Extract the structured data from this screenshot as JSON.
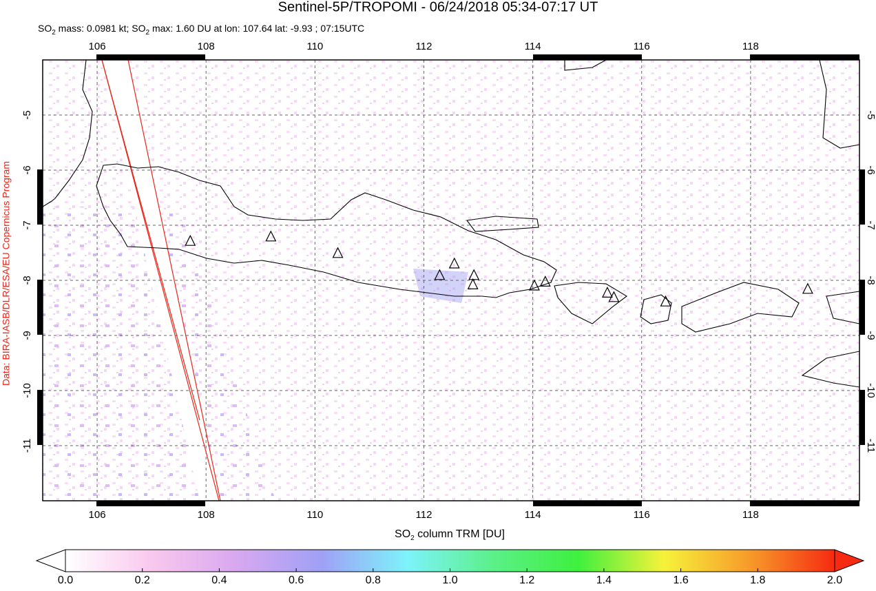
{
  "chart_data": {
    "type": "map",
    "title": "Sentinel-5P/TROPOMI - 06/24/2018 05:34-07:17 UT",
    "subtitle": [
      "SO",
      "2",
      " mass: 0.0981 kt; SO",
      "2",
      " max: 1.60 DU at lon: 107.64 lat: -9.93 ; 07:15UTC"
    ],
    "credit": "Data: BIRA-IASB/DLR/ESA/EU Copernicus Program",
    "xlim": [
      105,
      120
    ],
    "ylim": [
      -12,
      -4
    ],
    "xticks": [
      106,
      108,
      110,
      112,
      114,
      116,
      118
    ],
    "yticks": [
      -5,
      -6,
      -7,
      -8,
      -9,
      -10,
      -11
    ],
    "grid": true,
    "volcanoes": {
      "lon": [
        107.71,
        109.19,
        110.42,
        112.29,
        112.56,
        112.92,
        112.9,
        114.03,
        114.23,
        115.37,
        115.49,
        116.44,
        119.05
      ],
      "lat": [
        -7.29,
        -7.21,
        -7.51,
        -7.91,
        -7.7,
        -7.91,
        -8.08,
        -8.1,
        -8.03,
        -8.23,
        -8.31,
        -8.39,
        -8.16
      ]
    },
    "colorbar": {
      "label": [
        "SO",
        "2",
        " column TRM [DU]"
      ],
      "lim": [
        0,
        2
      ],
      "ticks": [
        {
          "value": 0,
          "label": "0.0"
        },
        {
          "value": 0.2,
          "label": "0.2"
        },
        {
          "value": 0.4,
          "label": "0.4"
        },
        {
          "value": 0.6,
          "label": "0.6"
        },
        {
          "value": 0.8,
          "label": "0.8"
        },
        {
          "value": 1,
          "label": "1.0"
        },
        {
          "value": 1.2,
          "label": "1.2"
        },
        {
          "value": 1.4,
          "label": "1.4"
        },
        {
          "value": 1.6,
          "label": "1.6"
        },
        {
          "value": 1.8,
          "label": "1.8"
        },
        {
          "value": 2,
          "label": "2.0"
        }
      ],
      "colors": [
        "#ffffff",
        "#f9c8ee",
        "#d8a8f0",
        "#9fa0f5",
        "#7df3fb",
        "#5bf08a",
        "#3ef03e",
        "#f6f23a",
        "#f79b2a",
        "#f62a10"
      ]
    }
  }
}
